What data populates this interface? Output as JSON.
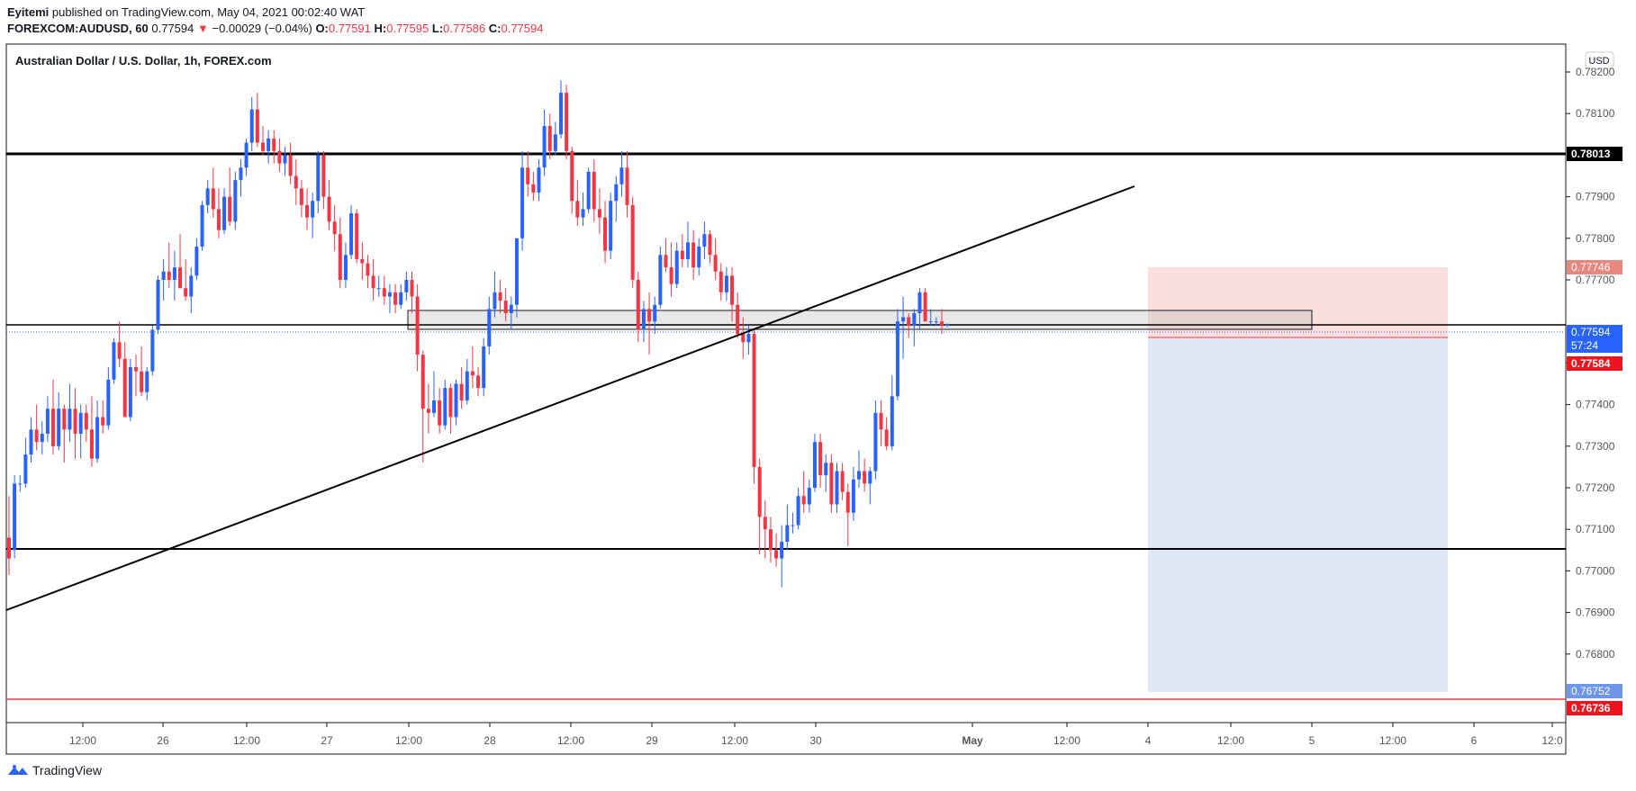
{
  "header": {
    "author": "Eyitemi",
    "published_text": "published on TradingView.com, May 04, 2021 00:02:40 WAT",
    "symbol": "FOREXCOM:AUDUSD, 60",
    "last": "0.77594",
    "change_arrow": "▼",
    "change": "−0.00029 (−0.04%)",
    "o_label": "O:",
    "o": "0.77591",
    "h_label": "H:",
    "h": "0.77595",
    "l_label": "L:",
    "l": "0.77586",
    "c_label": "C:",
    "c": "0.77594"
  },
  "chart_title": "Australian Dollar / U.S. Dollar, 1h, FOREX.com",
  "currency_badge": "USD",
  "footer": {
    "brand": "TradingView",
    "logo_icon": "tradingview-logo-icon"
  },
  "colors": {
    "up": "#2962ff",
    "down": "#f23645",
    "profit_zone": "#dbe6f6",
    "loss_zone": "#f9dcd8"
  },
  "chart_data": {
    "type": "candlestick",
    "title": "Australian Dollar / U.S. Dollar, 1h, FOREX.com",
    "ylim": [
      0.7664,
      0.7825
    ],
    "y_ticks": [
      "0.78200",
      "0.78100",
      "0.77900",
      "0.77800",
      "0.77700",
      "0.77500",
      "0.77400",
      "0.77300",
      "0.77200",
      "0.77100",
      "0.77000",
      "0.76900",
      "0.76800"
    ],
    "x_ticks": [
      "12:00",
      "26",
      "12:00",
      "27",
      "12:00",
      "28",
      "12:00",
      "29",
      "12:00",
      "30",
      "May",
      "12:00",
      "4",
      "12:00",
      "5",
      "12:00",
      "6",
      "12:0"
    ],
    "price_labels": [
      {
        "value": "0.78013",
        "style": "black"
      },
      {
        "value": "0.77746",
        "style": "lightred"
      },
      {
        "value": "0.77594",
        "style": "blue"
      },
      {
        "value": "57:24",
        "style": "blue"
      },
      {
        "value": "0.77584",
        "style": "red"
      },
      {
        "value": "0.76752",
        "style": "lightblue"
      },
      {
        "value": "0.76736",
        "style": "red"
      }
    ],
    "horizontal_levels": [
      0.78013,
      0.77611,
      0.77087,
      0.76736
    ],
    "support_zone": [
      0.77615,
      0.77657
    ],
    "trendline": [
      [
        0.76945,
        0.77932
      ]
    ],
    "position": {
      "entry": 0.77584,
      "stop": 0.77746,
      "target": 0.76752
    },
    "candles": [
      {
        "o": 0.7708,
        "h": 0.7718,
        "l": 0.7699,
        "c": 0.7703
      },
      {
        "o": 0.7705,
        "h": 0.7723,
        "l": 0.7703,
        "c": 0.7721
      },
      {
        "o": 0.7721,
        "h": 0.7723,
        "l": 0.7719,
        "c": 0.7721
      },
      {
        "o": 0.7721,
        "h": 0.7732,
        "l": 0.772,
        "c": 0.7728
      },
      {
        "o": 0.7728,
        "h": 0.7737,
        "l": 0.7726,
        "c": 0.7734
      },
      {
        "o": 0.7734,
        "h": 0.774,
        "l": 0.7729,
        "c": 0.7731
      },
      {
        "o": 0.7731,
        "h": 0.7736,
        "l": 0.7728,
        "c": 0.7733
      },
      {
        "o": 0.7733,
        "h": 0.7742,
        "l": 0.7731,
        "c": 0.7739
      },
      {
        "o": 0.7739,
        "h": 0.7746,
        "l": 0.7728,
        "c": 0.773
      },
      {
        "o": 0.773,
        "h": 0.7743,
        "l": 0.7729,
        "c": 0.7739
      },
      {
        "o": 0.7739,
        "h": 0.774,
        "l": 0.7726,
        "c": 0.7734
      },
      {
        "o": 0.7734,
        "h": 0.7745,
        "l": 0.7731,
        "c": 0.7739
      },
      {
        "o": 0.7739,
        "h": 0.7744,
        "l": 0.7727,
        "c": 0.7733
      },
      {
        "o": 0.7733,
        "h": 0.774,
        "l": 0.7727,
        "c": 0.7738
      },
      {
        "o": 0.7738,
        "h": 0.774,
        "l": 0.7731,
        "c": 0.7734
      },
      {
        "o": 0.7734,
        "h": 0.7742,
        "l": 0.7725,
        "c": 0.7727
      },
      {
        "o": 0.7727,
        "h": 0.7741,
        "l": 0.7726,
        "c": 0.7737
      },
      {
        "o": 0.7737,
        "h": 0.7741,
        "l": 0.7733,
        "c": 0.7735
      },
      {
        "o": 0.7735,
        "h": 0.7749,
        "l": 0.7734,
        "c": 0.7746
      },
      {
        "o": 0.7746,
        "h": 0.7756,
        "l": 0.7745,
        "c": 0.7755
      },
      {
        "o": 0.7755,
        "h": 0.776,
        "l": 0.7749,
        "c": 0.7751
      },
      {
        "o": 0.7751,
        "h": 0.7755,
        "l": 0.7737,
        "c": 0.7737
      },
      {
        "o": 0.7737,
        "h": 0.7751,
        "l": 0.7736,
        "c": 0.7749
      },
      {
        "o": 0.7749,
        "h": 0.7752,
        "l": 0.7742,
        "c": 0.7748
      },
      {
        "o": 0.7748,
        "h": 0.7754,
        "l": 0.7742,
        "c": 0.7743
      },
      {
        "o": 0.7743,
        "h": 0.7749,
        "l": 0.7741,
        "c": 0.7748
      },
      {
        "o": 0.7748,
        "h": 0.7759,
        "l": 0.7747,
        "c": 0.7758
      },
      {
        "o": 0.7758,
        "h": 0.7771,
        "l": 0.7757,
        "c": 0.777
      },
      {
        "o": 0.777,
        "h": 0.7775,
        "l": 0.7765,
        "c": 0.7772
      },
      {
        "o": 0.7772,
        "h": 0.7779,
        "l": 0.7768,
        "c": 0.777
      },
      {
        "o": 0.777,
        "h": 0.7777,
        "l": 0.7765,
        "c": 0.7773
      },
      {
        "o": 0.7773,
        "h": 0.7781,
        "l": 0.7769,
        "c": 0.7768
      },
      {
        "o": 0.7768,
        "h": 0.7775,
        "l": 0.7765,
        "c": 0.7766
      },
      {
        "o": 0.7766,
        "h": 0.7773,
        "l": 0.7762,
        "c": 0.7771
      },
      {
        "o": 0.7771,
        "h": 0.778,
        "l": 0.777,
        "c": 0.7778
      },
      {
        "o": 0.7778,
        "h": 0.7789,
        "l": 0.7777,
        "c": 0.7788
      },
      {
        "o": 0.7788,
        "h": 0.7794,
        "l": 0.7786,
        "c": 0.7792
      },
      {
        "o": 0.7792,
        "h": 0.7797,
        "l": 0.7785,
        "c": 0.7787
      },
      {
        "o": 0.7787,
        "h": 0.7792,
        "l": 0.778,
        "c": 0.7782
      },
      {
        "o": 0.7782,
        "h": 0.7792,
        "l": 0.7781,
        "c": 0.779
      },
      {
        "o": 0.779,
        "h": 0.7797,
        "l": 0.7783,
        "c": 0.7784
      },
      {
        "o": 0.7784,
        "h": 0.7796,
        "l": 0.7782,
        "c": 0.7794
      },
      {
        "o": 0.7794,
        "h": 0.7799,
        "l": 0.779,
        "c": 0.7797
      },
      {
        "o": 0.7797,
        "h": 0.7804,
        "l": 0.7795,
        "c": 0.7803
      },
      {
        "o": 0.7803,
        "h": 0.7814,
        "l": 0.7801,
        "c": 0.7811
      },
      {
        "o": 0.7811,
        "h": 0.7815,
        "l": 0.7802,
        "c": 0.7803
      },
      {
        "o": 0.7803,
        "h": 0.7807,
        "l": 0.78,
        "c": 0.7801
      },
      {
        "o": 0.7801,
        "h": 0.7806,
        "l": 0.7798,
        "c": 0.7804
      },
      {
        "o": 0.7804,
        "h": 0.7806,
        "l": 0.7798,
        "c": 0.7801
      },
      {
        "o": 0.7801,
        "h": 0.7804,
        "l": 0.7796,
        "c": 0.7798
      },
      {
        "o": 0.7798,
        "h": 0.7802,
        "l": 0.7795,
        "c": 0.78
      },
      {
        "o": 0.78,
        "h": 0.7803,
        "l": 0.7793,
        "c": 0.7795
      },
      {
        "o": 0.7795,
        "h": 0.7799,
        "l": 0.7788,
        "c": 0.7792
      },
      {
        "o": 0.7792,
        "h": 0.7794,
        "l": 0.7785,
        "c": 0.7788
      },
      {
        "o": 0.7788,
        "h": 0.7792,
        "l": 0.7782,
        "c": 0.7785
      },
      {
        "o": 0.7785,
        "h": 0.7791,
        "l": 0.778,
        "c": 0.7789
      },
      {
        "o": 0.7789,
        "h": 0.7801,
        "l": 0.7786,
        "c": 0.78
      },
      {
        "o": 0.78,
        "h": 0.7801,
        "l": 0.7787,
        "c": 0.779
      },
      {
        "o": 0.779,
        "h": 0.7794,
        "l": 0.7782,
        "c": 0.7784
      },
      {
        "o": 0.7784,
        "h": 0.7788,
        "l": 0.7777,
        "c": 0.7781
      },
      {
        "o": 0.7781,
        "h": 0.7785,
        "l": 0.7768,
        "c": 0.777
      },
      {
        "o": 0.777,
        "h": 0.7779,
        "l": 0.7768,
        "c": 0.7776
      },
      {
        "o": 0.7776,
        "h": 0.7788,
        "l": 0.7775,
        "c": 0.7786
      },
      {
        "o": 0.7786,
        "h": 0.7787,
        "l": 0.7774,
        "c": 0.7775
      },
      {
        "o": 0.7775,
        "h": 0.7779,
        "l": 0.777,
        "c": 0.7774
      },
      {
        "o": 0.7774,
        "h": 0.7776,
        "l": 0.7768,
        "c": 0.7771
      },
      {
        "o": 0.7771,
        "h": 0.7775,
        "l": 0.7765,
        "c": 0.7768
      },
      {
        "o": 0.7768,
        "h": 0.7771,
        "l": 0.7766,
        "c": 0.7768
      },
      {
        "o": 0.7768,
        "h": 0.7771,
        "l": 0.7764,
        "c": 0.7766
      },
      {
        "o": 0.7766,
        "h": 0.7769,
        "l": 0.7762,
        "c": 0.7767
      },
      {
        "o": 0.7767,
        "h": 0.7769,
        "l": 0.7762,
        "c": 0.7764
      },
      {
        "o": 0.7764,
        "h": 0.7769,
        "l": 0.7763,
        "c": 0.7767
      },
      {
        "o": 0.7767,
        "h": 0.7772,
        "l": 0.7765,
        "c": 0.777
      },
      {
        "o": 0.777,
        "h": 0.7772,
        "l": 0.7762,
        "c": 0.7766
      },
      {
        "o": 0.7766,
        "h": 0.7769,
        "l": 0.7748,
        "c": 0.7752
      },
      {
        "o": 0.7752,
        "h": 0.7753,
        "l": 0.7726,
        "c": 0.7739
      },
      {
        "o": 0.7739,
        "h": 0.7745,
        "l": 0.7733,
        "c": 0.7738
      },
      {
        "o": 0.7738,
        "h": 0.7748,
        "l": 0.7737,
        "c": 0.7741
      },
      {
        "o": 0.7741,
        "h": 0.7744,
        "l": 0.7733,
        "c": 0.7735
      },
      {
        "o": 0.7735,
        "h": 0.7746,
        "l": 0.7734,
        "c": 0.7744
      },
      {
        "o": 0.7744,
        "h": 0.7745,
        "l": 0.7733,
        "c": 0.7737
      },
      {
        "o": 0.7737,
        "h": 0.7746,
        "l": 0.7735,
        "c": 0.7745
      },
      {
        "o": 0.7745,
        "h": 0.7749,
        "l": 0.7739,
        "c": 0.7741
      },
      {
        "o": 0.7741,
        "h": 0.7751,
        "l": 0.774,
        "c": 0.7748
      },
      {
        "o": 0.7748,
        "h": 0.7754,
        "l": 0.7744,
        "c": 0.7747
      },
      {
        "o": 0.7747,
        "h": 0.7749,
        "l": 0.7742,
        "c": 0.7744
      },
      {
        "o": 0.7744,
        "h": 0.7756,
        "l": 0.7742,
        "c": 0.7754
      },
      {
        "o": 0.7754,
        "h": 0.7766,
        "l": 0.7752,
        "c": 0.7763
      },
      {
        "o": 0.7763,
        "h": 0.7772,
        "l": 0.7761,
        "c": 0.7767
      },
      {
        "o": 0.7767,
        "h": 0.777,
        "l": 0.7762,
        "c": 0.7765
      },
      {
        "o": 0.7765,
        "h": 0.7768,
        "l": 0.776,
        "c": 0.7762
      },
      {
        "o": 0.7762,
        "h": 0.7766,
        "l": 0.7758,
        "c": 0.7764
      },
      {
        "o": 0.7764,
        "h": 0.778,
        "l": 0.7761,
        "c": 0.778
      },
      {
        "o": 0.778,
        "h": 0.7801,
        "l": 0.7777,
        "c": 0.7797
      },
      {
        "o": 0.7797,
        "h": 0.7801,
        "l": 0.779,
        "c": 0.7793
      },
      {
        "o": 0.7793,
        "h": 0.7796,
        "l": 0.7789,
        "c": 0.7791
      },
      {
        "o": 0.7791,
        "h": 0.7799,
        "l": 0.7789,
        "c": 0.7797
      },
      {
        "o": 0.7797,
        "h": 0.7811,
        "l": 0.7795,
        "c": 0.7807
      },
      {
        "o": 0.7807,
        "h": 0.781,
        "l": 0.7799,
        "c": 0.7801
      },
      {
        "o": 0.7801,
        "h": 0.7808,
        "l": 0.78,
        "c": 0.7805
      },
      {
        "o": 0.7805,
        "h": 0.7818,
        "l": 0.7804,
        "c": 0.7815
      },
      {
        "o": 0.7815,
        "h": 0.7817,
        "l": 0.7799,
        "c": 0.7801
      },
      {
        "o": 0.7801,
        "h": 0.7802,
        "l": 0.7786,
        "c": 0.7789
      },
      {
        "o": 0.7789,
        "h": 0.7794,
        "l": 0.7783,
        "c": 0.7785
      },
      {
        "o": 0.7785,
        "h": 0.7791,
        "l": 0.7783,
        "c": 0.7787
      },
      {
        "o": 0.7787,
        "h": 0.7797,
        "l": 0.7786,
        "c": 0.7796
      },
      {
        "o": 0.7796,
        "h": 0.7799,
        "l": 0.7784,
        "c": 0.7787
      },
      {
        "o": 0.7787,
        "h": 0.7792,
        "l": 0.7781,
        "c": 0.7785
      },
      {
        "o": 0.7785,
        "h": 0.7789,
        "l": 0.7774,
        "c": 0.7777
      },
      {
        "o": 0.7777,
        "h": 0.7791,
        "l": 0.7775,
        "c": 0.7789
      },
      {
        "o": 0.7789,
        "h": 0.7795,
        "l": 0.7784,
        "c": 0.7793
      },
      {
        "o": 0.7793,
        "h": 0.7801,
        "l": 0.779,
        "c": 0.7797
      },
      {
        "o": 0.7797,
        "h": 0.7801,
        "l": 0.7785,
        "c": 0.7788
      },
      {
        "o": 0.7788,
        "h": 0.779,
        "l": 0.7768,
        "c": 0.777
      },
      {
        "o": 0.777,
        "h": 0.7772,
        "l": 0.7755,
        "c": 0.7758
      },
      {
        "o": 0.7758,
        "h": 0.7765,
        "l": 0.7755,
        "c": 0.7763
      },
      {
        "o": 0.7763,
        "h": 0.7767,
        "l": 0.7752,
        "c": 0.776
      },
      {
        "o": 0.776,
        "h": 0.7766,
        "l": 0.7757,
        "c": 0.7764
      },
      {
        "o": 0.7764,
        "h": 0.7778,
        "l": 0.7763,
        "c": 0.7776
      },
      {
        "o": 0.7776,
        "h": 0.778,
        "l": 0.7772,
        "c": 0.7773
      },
      {
        "o": 0.7773,
        "h": 0.7779,
        "l": 0.7766,
        "c": 0.7769
      },
      {
        "o": 0.7769,
        "h": 0.7779,
        "l": 0.7768,
        "c": 0.7777
      },
      {
        "o": 0.7777,
        "h": 0.7781,
        "l": 0.7773,
        "c": 0.7775
      },
      {
        "o": 0.7775,
        "h": 0.7784,
        "l": 0.7773,
        "c": 0.7779
      },
      {
        "o": 0.7779,
        "h": 0.7782,
        "l": 0.777,
        "c": 0.7773
      },
      {
        "o": 0.7773,
        "h": 0.778,
        "l": 0.7771,
        "c": 0.7778
      },
      {
        "o": 0.7778,
        "h": 0.7784,
        "l": 0.7775,
        "c": 0.7781
      },
      {
        "o": 0.7781,
        "h": 0.7782,
        "l": 0.7774,
        "c": 0.7776
      },
      {
        "o": 0.7776,
        "h": 0.778,
        "l": 0.777,
        "c": 0.7772
      },
      {
        "o": 0.7772,
        "h": 0.7774,
        "l": 0.7765,
        "c": 0.7767
      },
      {
        "o": 0.7767,
        "h": 0.7773,
        "l": 0.7765,
        "c": 0.7771
      },
      {
        "o": 0.7771,
        "h": 0.7773,
        "l": 0.776,
        "c": 0.7764
      },
      {
        "o": 0.7764,
        "h": 0.7767,
        "l": 0.7756,
        "c": 0.7757
      },
      {
        "o": 0.7757,
        "h": 0.7761,
        "l": 0.7751,
        "c": 0.7755
      },
      {
        "o": 0.7755,
        "h": 0.7759,
        "l": 0.7752,
        "c": 0.7757
      },
      {
        "o": 0.7757,
        "h": 0.7758,
        "l": 0.7721,
        "c": 0.7725
      },
      {
        "o": 0.7725,
        "h": 0.7727,
        "l": 0.7704,
        "c": 0.7713
      },
      {
        "o": 0.7713,
        "h": 0.7717,
        "l": 0.7703,
        "c": 0.771
      },
      {
        "o": 0.771,
        "h": 0.7713,
        "l": 0.7702,
        "c": 0.7705
      },
      {
        "o": 0.7705,
        "h": 0.7709,
        "l": 0.7701,
        "c": 0.7703
      },
      {
        "o": 0.7703,
        "h": 0.7711,
        "l": 0.7696,
        "c": 0.7707
      },
      {
        "o": 0.7707,
        "h": 0.7716,
        "l": 0.7705,
        "c": 0.7711
      },
      {
        "o": 0.7711,
        "h": 0.7714,
        "l": 0.7709,
        "c": 0.7711
      },
      {
        "o": 0.7711,
        "h": 0.772,
        "l": 0.771,
        "c": 0.7718
      },
      {
        "o": 0.7718,
        "h": 0.7724,
        "l": 0.7714,
        "c": 0.7716
      },
      {
        "o": 0.7716,
        "h": 0.7722,
        "l": 0.7714,
        "c": 0.772
      },
      {
        "o": 0.772,
        "h": 0.7733,
        "l": 0.7719,
        "c": 0.7731
      },
      {
        "o": 0.7731,
        "h": 0.7733,
        "l": 0.772,
        "c": 0.7723
      },
      {
        "o": 0.7723,
        "h": 0.7728,
        "l": 0.7719,
        "c": 0.7726
      },
      {
        "o": 0.7726,
        "h": 0.7728,
        "l": 0.7714,
        "c": 0.7716
      },
      {
        "o": 0.7716,
        "h": 0.7726,
        "l": 0.7714,
        "c": 0.7724
      },
      {
        "o": 0.7724,
        "h": 0.7726,
        "l": 0.7717,
        "c": 0.7719
      },
      {
        "o": 0.7719,
        "h": 0.7721,
        "l": 0.7706,
        "c": 0.7714
      },
      {
        "o": 0.7714,
        "h": 0.7725,
        "l": 0.7712,
        "c": 0.7722
      },
      {
        "o": 0.7722,
        "h": 0.7729,
        "l": 0.772,
        "c": 0.7724
      },
      {
        "o": 0.7724,
        "h": 0.7727,
        "l": 0.7719,
        "c": 0.7721
      },
      {
        "o": 0.7721,
        "h": 0.7725,
        "l": 0.7716,
        "c": 0.7724
      },
      {
        "o": 0.7724,
        "h": 0.7741,
        "l": 0.7722,
        "c": 0.7738
      },
      {
        "o": 0.7738,
        "h": 0.7741,
        "l": 0.773,
        "c": 0.7734
      },
      {
        "o": 0.7734,
        "h": 0.7737,
        "l": 0.7729,
        "c": 0.773
      },
      {
        "o": 0.773,
        "h": 0.7747,
        "l": 0.7729,
        "c": 0.7742
      },
      {
        "o": 0.7742,
        "h": 0.7763,
        "l": 0.7741,
        "c": 0.776
      },
      {
        "o": 0.776,
        "h": 0.7766,
        "l": 0.7751,
        "c": 0.7761
      },
      {
        "o": 0.7761,
        "h": 0.7762,
        "l": 0.7756,
        "c": 0.7759
      },
      {
        "o": 0.7759,
        "h": 0.7763,
        "l": 0.7754,
        "c": 0.7762
      },
      {
        "o": 0.7762,
        "h": 0.7768,
        "l": 0.7758,
        "c": 0.7767
      },
      {
        "o": 0.7767,
        "h": 0.7768,
        "l": 0.776,
        "c": 0.776
      },
      {
        "o": 0.776,
        "h": 0.7763,
        "l": 0.7759,
        "c": 0.776
      },
      {
        "o": 0.776,
        "h": 0.7761,
        "l": 0.7759,
        "c": 0.776
      },
      {
        "o": 0.776,
        "h": 0.7763,
        "l": 0.7757,
        "c": 0.7759
      },
      {
        "o": 0.7759,
        "h": 0.77595,
        "l": 0.77586,
        "c": 0.77594
      }
    ]
  }
}
